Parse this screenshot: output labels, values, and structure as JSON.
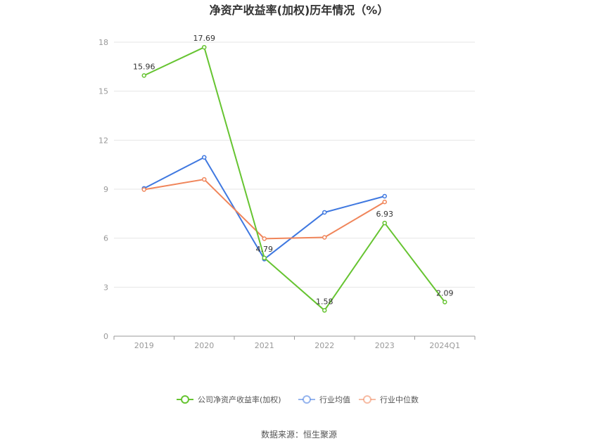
{
  "chart_data": {
    "type": "line",
    "title": "净资产收益率(加权)历年情况（%）",
    "categories": [
      "2019",
      "2020",
      "2021",
      "2022",
      "2023",
      "2024Q1"
    ],
    "ylim": [
      0,
      18
    ],
    "yticks": [
      "0",
      "3",
      "6",
      "9",
      "12",
      "15",
      "18"
    ],
    "grid": true,
    "legend_position": "bottom",
    "series": [
      {
        "name": "公司净资产收益率(加权)",
        "color": "#66c431",
        "values": [
          15.96,
          17.69,
          4.79,
          1.58,
          6.93,
          2.09
        ],
        "labels": [
          "15.96",
          "17.69",
          "4.79",
          "1.58",
          "6.93",
          "2.09"
        ]
      },
      {
        "name": "行业均值",
        "color": "#3f78e0",
        "values": [
          9.05,
          10.95,
          4.72,
          7.58,
          8.57,
          null
        ],
        "labels": []
      },
      {
        "name": "行业中位数",
        "color": "#f0855a",
        "values": [
          8.98,
          9.6,
          5.97,
          6.05,
          8.22,
          null
        ],
        "labels": []
      }
    ]
  },
  "source": "数据来源：恒生聚源"
}
